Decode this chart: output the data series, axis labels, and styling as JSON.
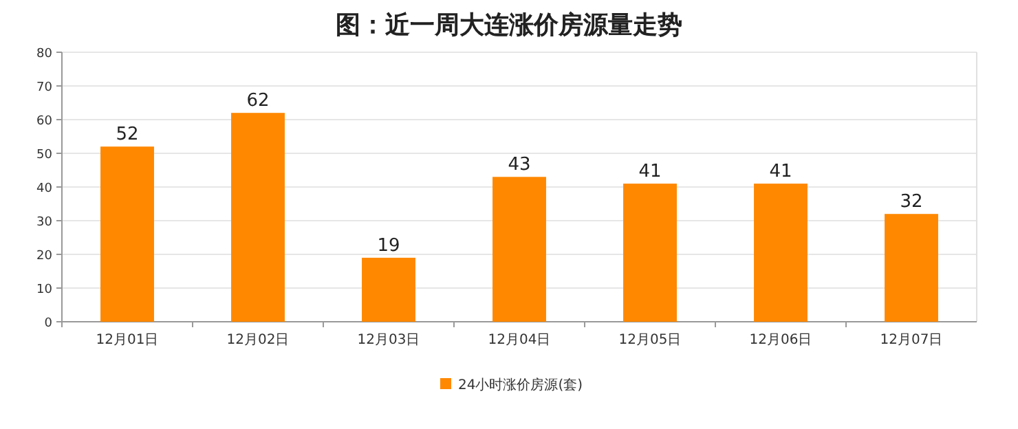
{
  "chart_data": {
    "type": "bar",
    "title": "图：近一周大连涨价房源量走势",
    "categories": [
      "12月01日",
      "12月02日",
      "12月03日",
      "12月04日",
      "12月05日",
      "12月06日",
      "12月07日"
    ],
    "series": [
      {
        "name": "24小时涨价房源(套)",
        "color": "#ff8800",
        "values": [
          52,
          62,
          19,
          43,
          41,
          41,
          32
        ]
      }
    ],
    "ylim": [
      0,
      80
    ],
    "yticks": [
      0,
      10,
      20,
      30,
      40,
      50,
      60,
      70,
      80
    ],
    "grid": "y",
    "data_labels": true,
    "legend": "bottom"
  }
}
